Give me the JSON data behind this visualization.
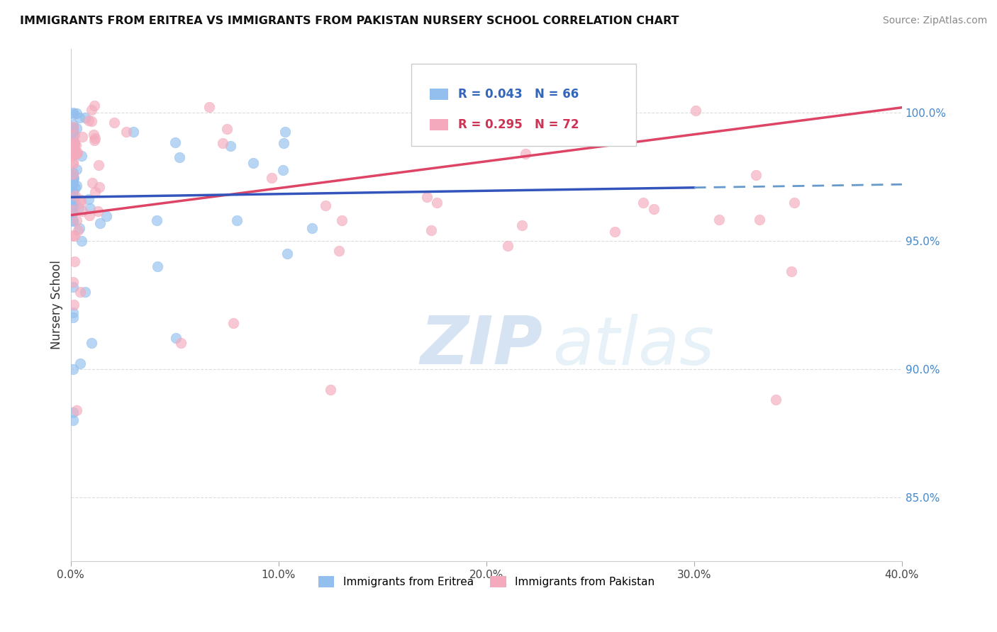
{
  "title": "IMMIGRANTS FROM ERITREA VS IMMIGRANTS FROM PAKISTAN NURSERY SCHOOL CORRELATION CHART",
  "source": "Source: ZipAtlas.com",
  "ylabel": "Nursery School",
  "legend_label1": "Immigrants from Eritrea",
  "legend_label2": "Immigrants from Pakistan",
  "R1": 0.043,
  "N1": 66,
  "R2": 0.295,
  "N2": 72,
  "xlim": [
    0.0,
    0.4
  ],
  "ylim": [
    0.825,
    1.025
  ],
  "yticks": [
    0.85,
    0.9,
    0.95,
    1.0
  ],
  "ytick_labels": [
    "85.0%",
    "90.0%",
    "95.0%",
    "100.0%"
  ],
  "xticks": [
    0.0,
    0.1,
    0.2,
    0.3,
    0.4
  ],
  "xtick_labels": [
    "0.0%",
    "10.0%",
    "20.0%",
    "30.0%",
    "40.0%"
  ],
  "color_blue": "#92BFEE",
  "color_pink": "#F4AABC",
  "color_blue_line": "#3355BB",
  "color_pink_line": "#DD4466",
  "color_blue_dashed": "#6699CC",
  "background_color": "#FFFFFF",
  "watermark_zip": "ZIP",
  "watermark_atlas": "atlas",
  "grid_color": "#CCCCCC",
  "right_tick_color": "#4488CC"
}
